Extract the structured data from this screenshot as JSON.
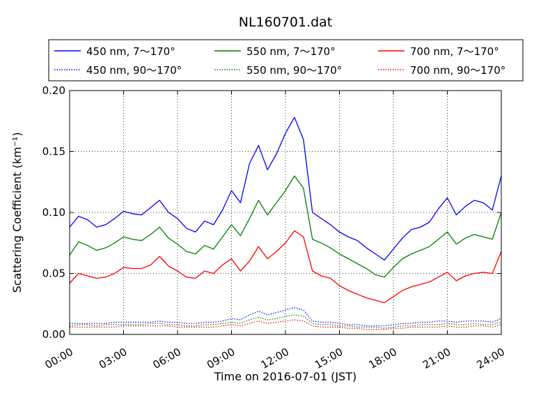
{
  "chart_data": {
    "type": "line",
    "title": "NL160701.dat",
    "xlabel": "Time on 2016-07-01 (JST)",
    "ylabel": "Scattering Coefficient (km⁻¹)",
    "x_ticks": [
      "00:00",
      "03:00",
      "06:00",
      "09:00",
      "12:00",
      "15:00",
      "18:00",
      "21:00",
      "24:00"
    ],
    "y_ticks": [
      "0.00",
      "0.05",
      "0.10",
      "0.15",
      "0.20"
    ],
    "xlim": [
      0,
      24
    ],
    "ylim": [
      0,
      0.2
    ],
    "x_unit": "hours (JST)",
    "grid": true,
    "legend_position": "top",
    "x": [
      0,
      0.5,
      1,
      1.5,
      2,
      2.5,
      3,
      3.5,
      4,
      4.5,
      5,
      5.5,
      6,
      6.5,
      7,
      7.5,
      8,
      8.5,
      9,
      9.5,
      10,
      10.5,
      11,
      11.5,
      12,
      12.5,
      13,
      13.5,
      14,
      14.5,
      15,
      15.5,
      16,
      16.5,
      17,
      17.5,
      18,
      18.5,
      19,
      19.5,
      20,
      20.5,
      21,
      21.5,
      22,
      22.5,
      23,
      23.5,
      24
    ],
    "series": [
      {
        "name": "450 nm, 7～170°",
        "color": "#0000ff",
        "style": "solid",
        "values": [
          0.088,
          0.097,
          0.094,
          0.088,
          0.09,
          0.095,
          0.101,
          0.099,
          0.098,
          0.104,
          0.11,
          0.1,
          0.095,
          0.087,
          0.084,
          0.093,
          0.09,
          0.102,
          0.118,
          0.108,
          0.14,
          0.155,
          0.135,
          0.148,
          0.165,
          0.178,
          0.16,
          0.1,
          0.095,
          0.09,
          0.084,
          0.08,
          0.077,
          0.071,
          0.066,
          0.061,
          0.07,
          0.079,
          0.086,
          0.088,
          0.092,
          0.103,
          0.112,
          0.098,
          0.105,
          0.11,
          0.108,
          0.102,
          0.13
        ]
      },
      {
        "name": "550 nm, 7～170°",
        "color": "#008000",
        "style": "solid",
        "values": [
          0.065,
          0.076,
          0.073,
          0.069,
          0.071,
          0.075,
          0.08,
          0.078,
          0.077,
          0.082,
          0.088,
          0.079,
          0.074,
          0.068,
          0.066,
          0.073,
          0.07,
          0.08,
          0.09,
          0.081,
          0.095,
          0.11,
          0.098,
          0.108,
          0.118,
          0.13,
          0.12,
          0.078,
          0.075,
          0.071,
          0.066,
          0.062,
          0.058,
          0.054,
          0.049,
          0.047,
          0.055,
          0.062,
          0.066,
          0.069,
          0.072,
          0.078,
          0.084,
          0.074,
          0.079,
          0.082,
          0.08,
          0.078,
          0.1
        ]
      },
      {
        "name": "700 nm, 7～170°",
        "color": "#ff0000",
        "style": "solid",
        "values": [
          0.042,
          0.05,
          0.048,
          0.046,
          0.047,
          0.05,
          0.055,
          0.054,
          0.054,
          0.057,
          0.064,
          0.056,
          0.052,
          0.047,
          0.046,
          0.052,
          0.05,
          0.057,
          0.062,
          0.052,
          0.06,
          0.072,
          0.062,
          0.068,
          0.075,
          0.085,
          0.08,
          0.052,
          0.048,
          0.046,
          0.04,
          0.036,
          0.033,
          0.03,
          0.028,
          0.026,
          0.031,
          0.036,
          0.039,
          0.041,
          0.043,
          0.047,
          0.051,
          0.044,
          0.048,
          0.05,
          0.051,
          0.05,
          0.068
        ]
      },
      {
        "name": "450 nm, 90～170°",
        "color": "#0000ff",
        "style": "dotted",
        "values": [
          0.009,
          0.009,
          0.009,
          0.009,
          0.009,
          0.01,
          0.01,
          0.01,
          0.01,
          0.01,
          0.011,
          0.01,
          0.01,
          0.009,
          0.009,
          0.01,
          0.01,
          0.011,
          0.013,
          0.012,
          0.016,
          0.019,
          0.016,
          0.018,
          0.02,
          0.022,
          0.02,
          0.011,
          0.01,
          0.01,
          0.009,
          0.008,
          0.008,
          0.007,
          0.007,
          0.007,
          0.008,
          0.009,
          0.009,
          0.01,
          0.01,
          0.011,
          0.011,
          0.01,
          0.011,
          0.011,
          0.011,
          0.01,
          0.013
        ]
      },
      {
        "name": "550 nm, 90～170°",
        "color": "#008000",
        "style": "dotted",
        "values": [
          0.007,
          0.008,
          0.008,
          0.007,
          0.008,
          0.008,
          0.008,
          0.008,
          0.008,
          0.009,
          0.009,
          0.008,
          0.008,
          0.007,
          0.007,
          0.008,
          0.008,
          0.009,
          0.01,
          0.009,
          0.012,
          0.014,
          0.012,
          0.013,
          0.015,
          0.016,
          0.015,
          0.009,
          0.008,
          0.008,
          0.007,
          0.007,
          0.006,
          0.006,
          0.006,
          0.005,
          0.006,
          0.007,
          0.007,
          0.008,
          0.008,
          0.008,
          0.009,
          0.008,
          0.008,
          0.009,
          0.008,
          0.008,
          0.01
        ]
      },
      {
        "name": "700 nm, 90～170°",
        "color": "#ff0000",
        "style": "dotted",
        "values": [
          0.006,
          0.006,
          0.006,
          0.006,
          0.006,
          0.006,
          0.007,
          0.007,
          0.007,
          0.007,
          0.007,
          0.007,
          0.006,
          0.006,
          0.006,
          0.006,
          0.006,
          0.007,
          0.008,
          0.007,
          0.009,
          0.011,
          0.009,
          0.01,
          0.011,
          0.012,
          0.011,
          0.007,
          0.006,
          0.006,
          0.006,
          0.005,
          0.005,
          0.004,
          0.004,
          0.004,
          0.005,
          0.005,
          0.006,
          0.006,
          0.006,
          0.006,
          0.007,
          0.006,
          0.006,
          0.007,
          0.007,
          0.006,
          0.008
        ]
      }
    ]
  }
}
